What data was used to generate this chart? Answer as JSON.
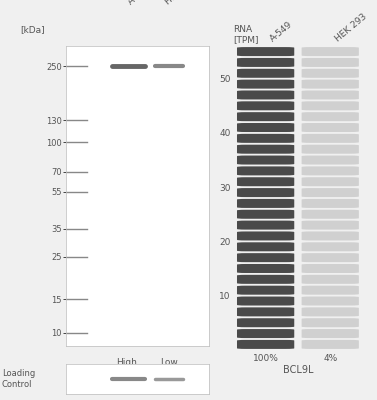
{
  "background_color": "#f0f0f0",
  "kda_label": "[kDa]",
  "ladder_labels": [
    "250",
    "130",
    "100",
    "70",
    "55",
    "35",
    "25",
    "15",
    "10"
  ],
  "ladder_positions": [
    250,
    130,
    100,
    70,
    55,
    35,
    25,
    15,
    10
  ],
  "sample_labels": [
    "A-549",
    "HEK 293"
  ],
  "band_label_bottom": [
    "High",
    "Low"
  ],
  "loading_control_label": "Loading\nControl",
  "rna_label": "RNA\n[TPM]",
  "rna_yticks": [
    10,
    20,
    30,
    40,
    50
  ],
  "rna_n_bars": 28,
  "col1_color": "#4a4a4a",
  "col2_color": "#d0d0d0",
  "col1_pct": "100%",
  "col2_pct": "4%",
  "gene_label": "BCL9L",
  "rna_col1_header": "A-549",
  "rna_col2_header": "HEK 293",
  "wb_facecolor": "#e8e8e8",
  "wb_band_color_1": "#666666",
  "wb_band_color_2": "#888888",
  "lc_band_color_1": "#888888",
  "lc_band_color_2": "#999999"
}
